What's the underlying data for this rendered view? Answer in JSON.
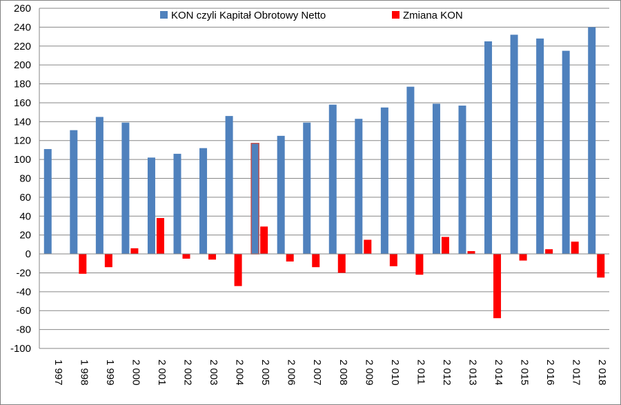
{
  "chart_data": {
    "type": "bar",
    "title": "",
    "xlabel": "",
    "ylabel": "",
    "ylim": [
      -100,
      260
    ],
    "ytick_step": 20,
    "grid": true,
    "legend_position": "top",
    "categories": [
      "1 997",
      "1 998",
      "1 999",
      "2 000",
      "2 001",
      "2 002",
      "2 003",
      "2 004",
      "2 005",
      "2 006",
      "2 007",
      "2 008",
      "2 009",
      "2 010",
      "2 011",
      "2 012",
      "2 013",
      "2 014",
      "2 015",
      "2 016",
      "2 017",
      "2 018"
    ],
    "series": [
      {
        "name": "KON czyli Kapitał Obrotowy Netto",
        "color": "#4F81BD",
        "values": [
          111,
          131,
          145,
          139,
          102,
          106,
          112,
          146,
          117,
          125,
          139,
          158,
          143,
          155,
          177,
          159,
          157,
          225,
          232,
          228,
          215,
          240
        ]
      },
      {
        "name": "Zmiana KON",
        "color": "#FF0000",
        "values": [
          0,
          -21,
          -14,
          6,
          38,
          -5,
          -6,
          -34,
          29,
          -8,
          -14,
          -20,
          15,
          -13,
          -22,
          18,
          3,
          -68,
          -7,
          5,
          13,
          -25
        ]
      }
    ]
  }
}
